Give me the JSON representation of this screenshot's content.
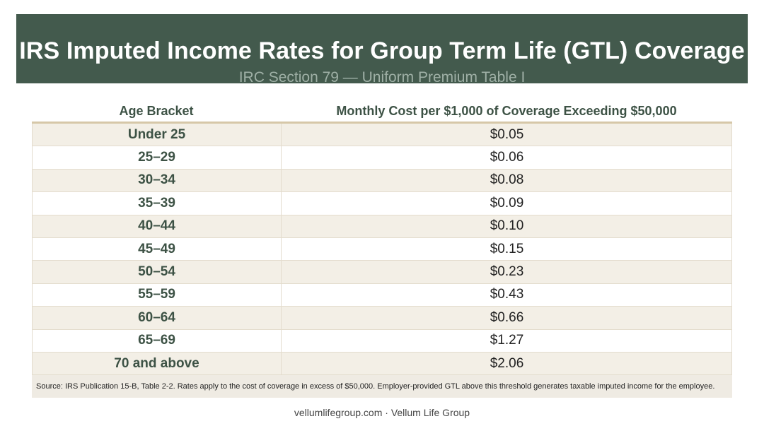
{
  "header": {
    "title": "IRS Imputed Income Rates for Group Term Life (GTL) Coverage",
    "subtitle": "IRC Section 79 — Uniform Premium Table I"
  },
  "table": {
    "columns": [
      "Age Bracket",
      "Monthly Cost per $1,000 of Coverage Exceeding $50,000"
    ],
    "rows": [
      {
        "age": "Under 25",
        "rate": "$0.05"
      },
      {
        "age": "25–29",
        "rate": "$0.06"
      },
      {
        "age": "30–34",
        "rate": "$0.08"
      },
      {
        "age": "35–39",
        "rate": "$0.09"
      },
      {
        "age": "40–44",
        "rate": "$0.10"
      },
      {
        "age": "45–49",
        "rate": "$0.15"
      },
      {
        "age": "50–54",
        "rate": "$0.23"
      },
      {
        "age": "55–59",
        "rate": "$0.43"
      },
      {
        "age": "60–64",
        "rate": "$0.66"
      },
      {
        "age": "65–69",
        "rate": "$1.27"
      },
      {
        "age": "70 and above",
        "rate": "$2.06"
      }
    ],
    "source": "Source: IRS Publication 15-B, Table 2-2. Rates apply to the cost of coverage in excess of $50,000. Employer-provided GTL above this threshold generates taxable imputed income for the employee."
  },
  "footer": {
    "text": "vellumlifegroup.com · Vellum Life Group"
  },
  "colors": {
    "banner": "#435a4d",
    "banner_subtitle": "#9fb0a6",
    "row_stripe": "#f3efe6",
    "header_rule": "#d6c7a8",
    "age_text": "#3d5245"
  }
}
